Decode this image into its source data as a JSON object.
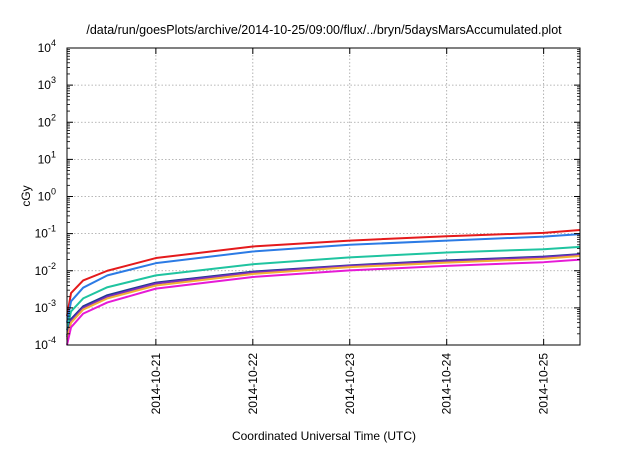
{
  "chart_data": {
    "type": "line",
    "title": "/data/run/goesPlots/archive/2014-10-25/09:00/flux/../bryn/5daysMarsAccumulated.plot",
    "xlabel": "Coordinated Universal Time (UTC)",
    "ylabel": "cGy",
    "yscale": "log",
    "ylim": [
      0.0001,
      10000
    ],
    "xlim": [
      "2014-10-20T02:00",
      "2014-10-25T09:00"
    ],
    "x_ticks": [
      "2014-10-21",
      "2014-10-22",
      "2014-10-23",
      "2014-10-24",
      "2014-10-25"
    ],
    "y_ticks": [
      {
        "base": "10",
        "exp": "-4",
        "value": 0.0001
      },
      {
        "base": "10",
        "exp": "-3",
        "value": 0.001
      },
      {
        "base": "10",
        "exp": "-2",
        "value": 0.01
      },
      {
        "base": "10",
        "exp": "-1",
        "value": 0.1
      },
      {
        "base": "10",
        "exp": "0",
        "value": 1
      },
      {
        "base": "10",
        "exp": "1",
        "value": 10
      },
      {
        "base": "10",
        "exp": "2",
        "value": 100
      },
      {
        "base": "10",
        "exp": "3",
        "value": 1000
      },
      {
        "base": "10",
        "exp": "4",
        "value": 10000
      }
    ],
    "grid": true,
    "series": [
      {
        "color": "#e41a1c",
        "x": [
          "2014-10-20T02:00",
          "2014-10-20T03:00",
          "2014-10-20T06:00",
          "2014-10-20T12:00",
          "2014-10-21T00:00",
          "2014-10-22T00:00",
          "2014-10-23T00:00",
          "2014-10-24T00:00",
          "2014-10-25T00:00",
          "2014-10-25T09:00"
        ],
        "values": [
          0.0006,
          0.0025,
          0.0055,
          0.01,
          0.022,
          0.045,
          0.065,
          0.085,
          0.105,
          0.125
        ]
      },
      {
        "color": "#2c7be5",
        "x": [
          "2014-10-20T02:00",
          "2014-10-20T03:00",
          "2014-10-20T06:00",
          "2014-10-20T12:00",
          "2014-10-21T00:00",
          "2014-10-22T00:00",
          "2014-10-23T00:00",
          "2014-10-24T00:00",
          "2014-10-25T00:00",
          "2014-10-25T09:00"
        ],
        "values": [
          0.0004,
          0.0015,
          0.0035,
          0.0075,
          0.016,
          0.033,
          0.05,
          0.065,
          0.083,
          0.097
        ]
      },
      {
        "color": "#1fc4a0",
        "x": [
          "2014-10-20T02:00",
          "2014-10-20T03:00",
          "2014-10-20T06:00",
          "2014-10-20T12:00",
          "2014-10-21T00:00",
          "2014-10-22T00:00",
          "2014-10-23T00:00",
          "2014-10-24T00:00",
          "2014-10-25T00:00",
          "2014-10-25T09:00"
        ],
        "values": [
          0.00025,
          0.0008,
          0.0018,
          0.0036,
          0.0075,
          0.015,
          0.023,
          0.031,
          0.038,
          0.044
        ]
      },
      {
        "color": "#1f3a93",
        "x": [
          "2014-10-20T02:00",
          "2014-10-20T03:00",
          "2014-10-20T06:00",
          "2014-10-20T12:00",
          "2014-10-21T00:00",
          "2014-10-22T00:00",
          "2014-10-23T00:00",
          "2014-10-24T00:00",
          "2014-10-25T00:00",
          "2014-10-25T09:00"
        ],
        "values": [
          0.00018,
          0.0005,
          0.0011,
          0.0022,
          0.0048,
          0.0095,
          0.014,
          0.019,
          0.024,
          0.028
        ]
      },
      {
        "color": "#7b2cbf",
        "x": [
          "2014-10-20T02:00",
          "2014-10-20T03:00",
          "2014-10-20T06:00",
          "2014-10-20T12:00",
          "2014-10-21T00:00",
          "2014-10-22T00:00",
          "2014-10-23T00:00",
          "2014-10-24T00:00",
          "2014-10-25T00:00",
          "2014-10-25T09:00"
        ],
        "values": [
          0.00016,
          0.00045,
          0.001,
          0.002,
          0.0045,
          0.009,
          0.0135,
          0.018,
          0.023,
          0.027
        ]
      },
      {
        "color": "#f2b134",
        "x": [
          "2014-10-20T02:00",
          "2014-10-20T03:00",
          "2014-10-20T06:00",
          "2014-10-20T12:00",
          "2014-10-21T00:00",
          "2014-10-22T00:00",
          "2014-10-23T00:00",
          "2014-10-24T00:00",
          "2014-10-25T00:00",
          "2014-10-25T09:00"
        ],
        "values": [
          0.00014,
          0.0004,
          0.0009,
          0.0018,
          0.004,
          0.0082,
          0.0125,
          0.0165,
          0.021,
          0.025
        ]
      },
      {
        "color": "#e61ad6",
        "x": [
          "2014-10-20T02:00",
          "2014-10-20T03:00",
          "2014-10-20T06:00",
          "2014-10-20T12:00",
          "2014-10-21T00:00",
          "2014-10-22T00:00",
          "2014-10-23T00:00",
          "2014-10-24T00:00",
          "2014-10-25T00:00",
          "2014-10-25T09:00"
        ],
        "values": [
          0.0001,
          0.0003,
          0.0007,
          0.0014,
          0.0033,
          0.0068,
          0.0102,
          0.0135,
          0.017,
          0.02
        ]
      }
    ]
  }
}
